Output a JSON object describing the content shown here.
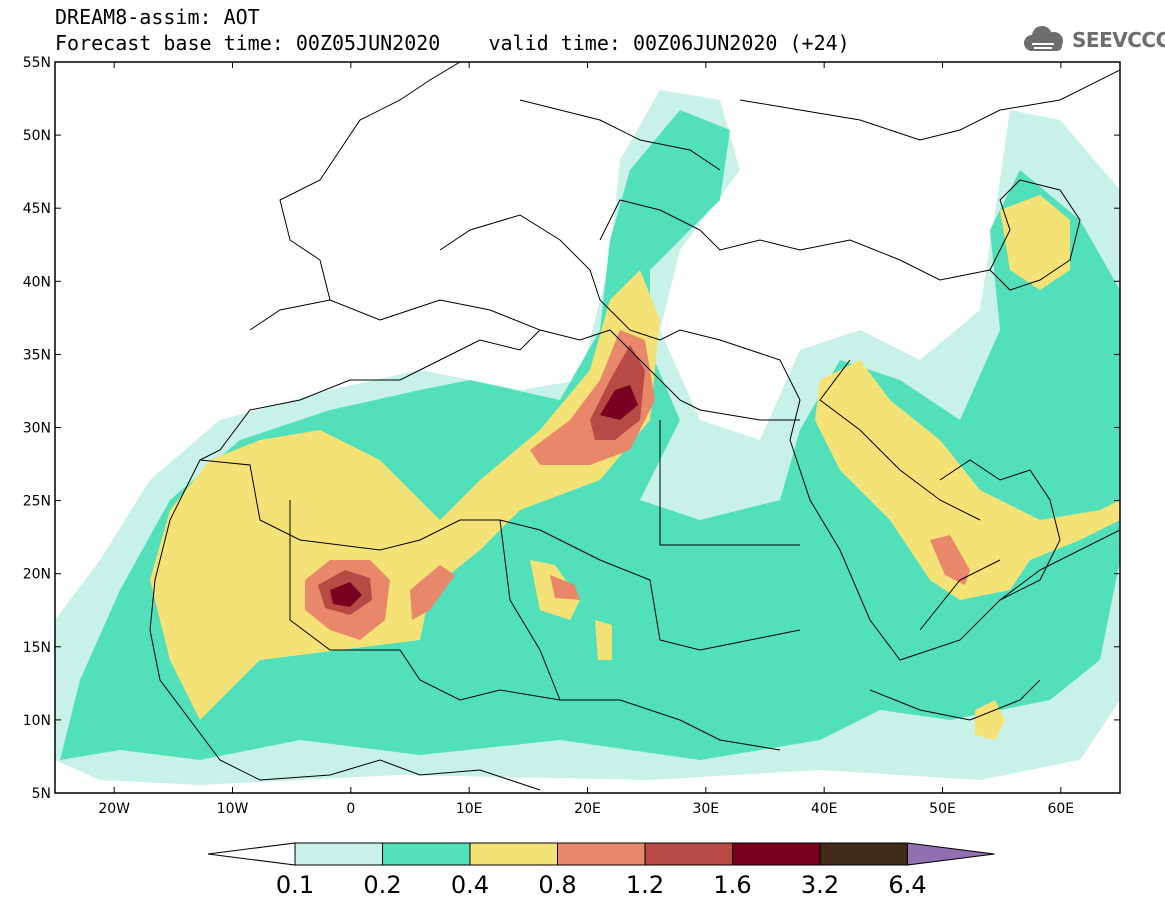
{
  "header": {
    "title_line1": "DREAM8-assim: AOT",
    "title_line2": "Forecast base time: 00Z05JUN2020    valid time: 00Z06JUN2020 (+24)",
    "logo_text": "SEEVCCC",
    "logo_icon": "cloud-icon"
  },
  "map": {
    "latitude_labels": [
      "55N",
      "50N",
      "45N",
      "40N",
      "35N",
      "30N",
      "25N",
      "20N",
      "15N",
      "10N",
      "5N"
    ],
    "longitude_labels": [
      "20W",
      "10W",
      "0",
      "10E",
      "20E",
      "30E",
      "40E",
      "50E",
      "60E"
    ],
    "extent": {
      "lon_min": -25,
      "lon_max": 65,
      "lat_min": 5,
      "lat_max": 55
    }
  },
  "colorbar": {
    "labels": [
      "0.1",
      "0.2",
      "0.4",
      "0.8",
      "1.2",
      "1.6",
      "3.2",
      "6.4"
    ],
    "colors": [
      "#ffffff",
      "#c8f2e8",
      "#52e0bb",
      "#f5e276",
      "#e8876a",
      "#b84a45",
      "#7a0020",
      "#3f2b18",
      "#9070b0"
    ]
  }
}
